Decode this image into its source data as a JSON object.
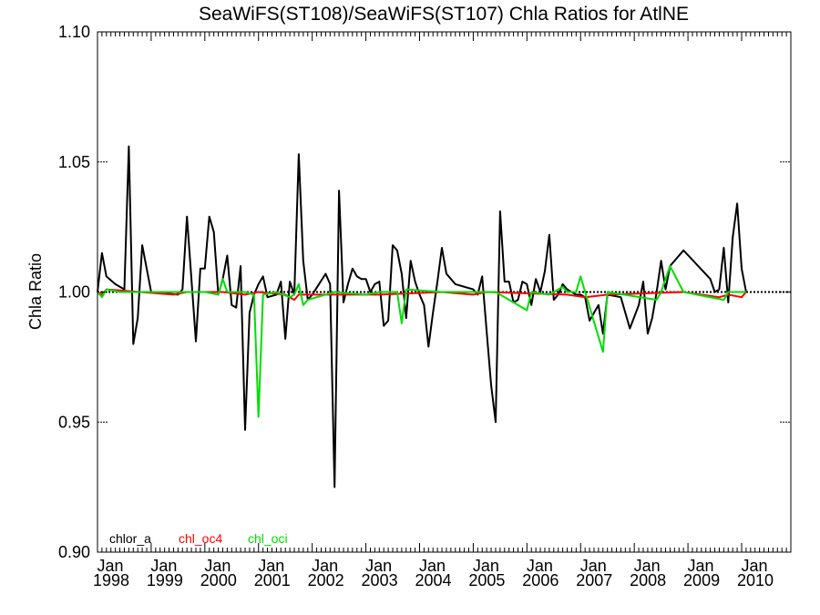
{
  "chart_data": {
    "type": "line",
    "title": "SeaWiFS(ST108)/SeaWiFS(ST107)  Chla Ratios for AtlNE",
    "ylabel": "Chla Ratio",
    "xlabel": "",
    "ylim": [
      0.9,
      1.1
    ],
    "xlim": [
      "1998-01",
      "2010-12"
    ],
    "y_ticks": [
      "0.90",
      "0.95",
      "1.00",
      "1.05",
      "1.10"
    ],
    "x_ticks": [
      {
        "date": "1998-01",
        "month": "Jan",
        "year": "1998"
      },
      {
        "date": "1999-01",
        "month": "Jan",
        "year": "1999"
      },
      {
        "date": "2000-01",
        "month": "Jan",
        "year": "2000"
      },
      {
        "date": "2001-01",
        "month": "Jan",
        "year": "2001"
      },
      {
        "date": "2002-01",
        "month": "Jan",
        "year": "2002"
      },
      {
        "date": "2003-01",
        "month": "Jan",
        "year": "2003"
      },
      {
        "date": "2004-01",
        "month": "Jan",
        "year": "2004"
      },
      {
        "date": "2005-01",
        "month": "Jan",
        "year": "2005"
      },
      {
        "date": "2006-01",
        "month": "Jan",
        "year": "2006"
      },
      {
        "date": "2007-01",
        "month": "Jan",
        "year": "2007"
      },
      {
        "date": "2008-01",
        "month": "Jan",
        "year": "2008"
      },
      {
        "date": "2009-01",
        "month": "Jan",
        "year": "2009"
      },
      {
        "date": "2010-01",
        "month": "Jan",
        "year": "2010"
      }
    ],
    "reference_line": {
      "y": 1.0,
      "style": "dotted",
      "color": "#000000"
    },
    "legend": {
      "placement": "bottom-left"
    },
    "series": [
      {
        "name": "chlor_a",
        "color": "#000000",
        "points": [
          [
            "1998-01",
            1.0
          ],
          [
            "1998-02",
            1.015
          ],
          [
            "1998-03",
            1.006
          ],
          [
            "1998-05",
            1.003
          ],
          [
            "1998-07",
            1.001
          ],
          [
            "1998-08",
            1.056
          ],
          [
            "1998-09",
            0.98
          ],
          [
            "1998-10",
            0.99
          ],
          [
            "1998-11",
            1.018
          ],
          [
            "1998-12",
            1.009
          ],
          [
            "1999-01",
            1.0
          ],
          [
            "1999-07",
            0.999
          ],
          [
            "1999-08",
            1.001
          ],
          [
            "1999-09",
            1.029
          ],
          [
            "1999-10",
            1.005
          ],
          [
            "1999-11",
            0.981
          ],
          [
            "1999-12",
            1.009
          ],
          [
            "2000-01",
            1.009
          ],
          [
            "2000-02",
            1.029
          ],
          [
            "2000-03",
            1.023
          ],
          [
            "2000-04",
            0.999
          ],
          [
            "2000-05",
            1.005
          ],
          [
            "2000-06",
            1.014
          ],
          [
            "2000-07",
            0.995
          ],
          [
            "2000-08",
            0.994
          ],
          [
            "2000-09",
            1.01
          ],
          [
            "2000-10",
            0.947
          ],
          [
            "2000-11",
            0.992
          ],
          [
            "2000-12",
            0.999
          ],
          [
            "2001-01",
            1.003
          ],
          [
            "2001-02",
            1.006
          ],
          [
            "2001-03",
            0.998
          ],
          [
            "2001-05",
            0.999
          ],
          [
            "2001-06",
            1.004
          ],
          [
            "2001-07",
            0.982
          ],
          [
            "2001-08",
            1.004
          ],
          [
            "2001-09",
            0.999
          ],
          [
            "2001-10",
            1.053
          ],
          [
            "2001-11",
            1.012
          ],
          [
            "2001-12",
            0.997
          ],
          [
            "2002-01",
            0.999
          ],
          [
            "2002-04",
            1.007
          ],
          [
            "2002-05",
            1.003
          ],
          [
            "2002-06",
            0.925
          ],
          [
            "2002-07",
            1.039
          ],
          [
            "2002-08",
            0.996
          ],
          [
            "2002-09",
            1.003
          ],
          [
            "2002-10",
            1.009
          ],
          [
            "2002-11",
            1.006
          ],
          [
            "2002-12",
            1.005
          ],
          [
            "2003-01",
            1.005
          ],
          [
            "2003-02",
            1.0
          ],
          [
            "2003-03",
            1.003
          ],
          [
            "2003-04",
            1.004
          ],
          [
            "2003-05",
            0.987
          ],
          [
            "2003-06",
            0.989
          ],
          [
            "2003-07",
            1.018
          ],
          [
            "2003-08",
            1.016
          ],
          [
            "2003-09",
            1.007
          ],
          [
            "2003-10",
            0.99
          ],
          [
            "2003-11",
            1.012
          ],
          [
            "2003-12",
            1.004
          ],
          [
            "2004-01",
            0.999
          ],
          [
            "2004-02",
            0.995
          ],
          [
            "2004-03",
            0.979
          ],
          [
            "2004-04",
            0.992
          ],
          [
            "2004-05",
            1.004
          ],
          [
            "2004-06",
            1.017
          ],
          [
            "2004-07",
            1.007
          ],
          [
            "2004-08",
            1.005
          ],
          [
            "2004-09",
            1.003
          ],
          [
            "2005-01",
            1.001
          ],
          [
            "2005-02",
            0.999
          ],
          [
            "2005-03",
            1.006
          ],
          [
            "2005-04",
            0.985
          ],
          [
            "2005-05",
            0.964
          ],
          [
            "2005-06",
            0.95
          ],
          [
            "2005-07",
            1.031
          ],
          [
            "2005-08",
            1.004
          ],
          [
            "2005-09",
            1.004
          ],
          [
            "2005-10",
            0.996
          ],
          [
            "2005-11",
            0.997
          ],
          [
            "2005-12",
            1.004
          ],
          [
            "2006-01",
            1.003
          ],
          [
            "2006-02",
            0.995
          ],
          [
            "2006-03",
            1.005
          ],
          [
            "2006-04",
            1.0
          ],
          [
            "2006-05",
            1.008
          ],
          [
            "2006-06",
            1.022
          ],
          [
            "2006-07",
            0.997
          ],
          [
            "2006-08",
            0.999
          ],
          [
            "2006-09",
            1.003
          ],
          [
            "2006-10",
            1.001
          ],
          [
            "2006-11",
            1.0
          ],
          [
            "2006-12",
            0.999
          ],
          [
            "2007-01",
            0.999
          ],
          [
            "2007-02",
            0.998
          ],
          [
            "2007-03",
            0.989
          ],
          [
            "2007-04",
            0.992
          ],
          [
            "2007-05",
            0.995
          ],
          [
            "2007-06",
            0.984
          ],
          [
            "2007-07",
            0.999
          ],
          [
            "2007-10",
            0.998
          ],
          [
            "2007-12",
            0.986
          ],
          [
            "2008-02",
            0.995
          ],
          [
            "2008-03",
            1.004
          ],
          [
            "2008-04",
            0.984
          ],
          [
            "2008-05",
            0.99
          ],
          [
            "2008-06",
            1.0
          ],
          [
            "2008-07",
            1.012
          ],
          [
            "2008-08",
            1.001
          ],
          [
            "2008-09",
            1.01
          ],
          [
            "2008-12",
            1.016
          ],
          [
            "2009-06",
            1.005
          ],
          [
            "2009-07",
            1.0
          ],
          [
            "2009-08",
            1.001
          ],
          [
            "2009-09",
            1.017
          ],
          [
            "2009-10",
            0.996
          ],
          [
            "2009-11",
            1.021
          ],
          [
            "2009-12",
            1.034
          ],
          [
            "2010-01",
            1.009
          ],
          [
            "2010-02",
            1.0
          ]
        ]
      },
      {
        "name": "chl_oc4",
        "color": "#ff0000",
        "points": [
          [
            "1998-01",
            1.0
          ],
          [
            "1998-02",
            0.999
          ],
          [
            "1998-03",
            1.001
          ],
          [
            "1999-06",
            0.999
          ],
          [
            "1999-09",
            1.0
          ],
          [
            "2000-03",
            1.0
          ],
          [
            "2000-05",
            1.0
          ],
          [
            "2000-10",
            0.999
          ],
          [
            "2001-01",
            1.0
          ],
          [
            "2001-07",
            0.999
          ],
          [
            "2001-09",
            0.997
          ],
          [
            "2001-10",
            0.999
          ],
          [
            "2002-06",
            0.999
          ],
          [
            "2003-04",
            0.999
          ],
          [
            "2004-06",
            1.0
          ],
          [
            "2005-01",
            0.999
          ],
          [
            "2005-04",
            1.0
          ],
          [
            "2006-10",
            0.999
          ],
          [
            "2007-02",
            0.998
          ],
          [
            "2007-07",
            0.999
          ],
          [
            "2008-12",
            1.0
          ],
          [
            "2009-08",
            0.998
          ],
          [
            "2009-10",
            0.999
          ],
          [
            "2010-01",
            0.998
          ],
          [
            "2010-02",
            1.0
          ]
        ]
      },
      {
        "name": "chl_oci",
        "color": "#00dd00",
        "points": [
          [
            "1998-01",
            1.0
          ],
          [
            "1998-02",
            0.998
          ],
          [
            "1998-03",
            1.001
          ],
          [
            "1998-06",
            1.0
          ],
          [
            "1999-04",
            1.0
          ],
          [
            "1999-08",
            1.0
          ],
          [
            "2000-01",
            1.0
          ],
          [
            "2000-04",
            0.999
          ],
          [
            "2000-05",
            1.005
          ],
          [
            "2000-06",
            1.0
          ],
          [
            "2000-10",
            1.0
          ],
          [
            "2000-12",
            0.999
          ],
          [
            "2001-01",
            0.952
          ],
          [
            "2001-02",
            0.999
          ],
          [
            "2001-05",
            1.0
          ],
          [
            "2001-08",
            0.998
          ],
          [
            "2001-09",
            0.999
          ],
          [
            "2001-10",
            1.003
          ],
          [
            "2001-11",
            0.995
          ],
          [
            "2001-12",
            0.997
          ],
          [
            "2002-06",
            1.0
          ],
          [
            "2003-01",
            0.999
          ],
          [
            "2003-04",
            1.0
          ],
          [
            "2003-08",
            1.0
          ],
          [
            "2003-09",
            0.988
          ],
          [
            "2003-10",
            1.001
          ],
          [
            "2004-06",
            1.0
          ],
          [
            "2005-06",
            1.0
          ],
          [
            "2006-01",
            0.993
          ],
          [
            "2006-02",
            1.0
          ],
          [
            "2006-06",
            0.999
          ],
          [
            "2006-09",
            1.002
          ],
          [
            "2006-10",
            1.0
          ],
          [
            "2006-12",
            1.0
          ],
          [
            "2007-01",
            1.006
          ],
          [
            "2007-02",
            1.0
          ],
          [
            "2007-06",
            0.977
          ],
          [
            "2007-07",
            1.0
          ],
          [
            "2008-06",
            0.997
          ],
          [
            "2008-07",
            1.0
          ],
          [
            "2008-09",
            1.01
          ],
          [
            "2008-12",
            1.0
          ],
          [
            "2009-09",
            0.997
          ],
          [
            "2009-10",
            1.0
          ],
          [
            "2010-02",
            1.0
          ]
        ]
      }
    ]
  }
}
